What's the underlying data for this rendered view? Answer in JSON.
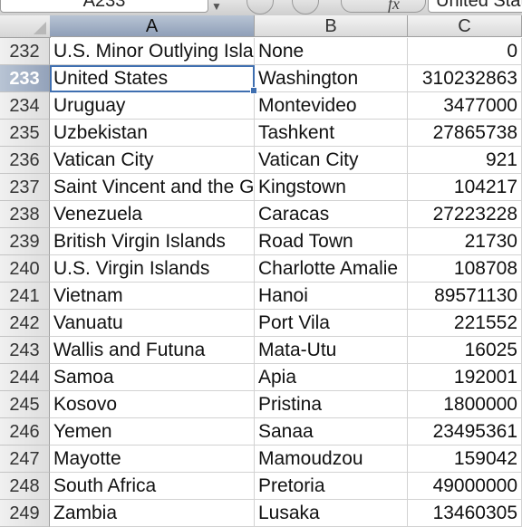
{
  "formula_bar": {
    "name_box": "A233",
    "content": "United States"
  },
  "columns": [
    "A",
    "B",
    "C"
  ],
  "selected_column": "A",
  "selected_row": "233",
  "rows": [
    {
      "num": "232",
      "a": "U.S. Minor Outlying Isla",
      "b": "None",
      "c": "0"
    },
    {
      "num": "233",
      "a": "United States",
      "b": "Washington",
      "c": "310232863"
    },
    {
      "num": "234",
      "a": "Uruguay",
      "b": "Montevideo",
      "c": "3477000"
    },
    {
      "num": "235",
      "a": "Uzbekistan",
      "b": "Tashkent",
      "c": "27865738"
    },
    {
      "num": "236",
      "a": "Vatican City",
      "b": "Vatican City",
      "c": "921"
    },
    {
      "num": "237",
      "a": "Saint Vincent and the G",
      "b": "Kingstown",
      "c": "104217"
    },
    {
      "num": "238",
      "a": "Venezuela",
      "b": "Caracas",
      "c": "27223228"
    },
    {
      "num": "239",
      "a": "British Virgin Islands",
      "b": "Road Town",
      "c": "21730"
    },
    {
      "num": "240",
      "a": "U.S. Virgin Islands",
      "b": "Charlotte Amalie",
      "c": "108708"
    },
    {
      "num": "241",
      "a": "Vietnam",
      "b": "Hanoi",
      "c": "89571130"
    },
    {
      "num": "242",
      "a": "Vanuatu",
      "b": "Port Vila",
      "c": "221552"
    },
    {
      "num": "243",
      "a": "Wallis and Futuna",
      "b": "Mata-Utu",
      "c": "16025"
    },
    {
      "num": "244",
      "a": "Samoa",
      "b": "Apia",
      "c": "192001"
    },
    {
      "num": "245",
      "a": "Kosovo",
      "b": "Pristina",
      "c": "1800000"
    },
    {
      "num": "246",
      "a": "Yemen",
      "b": "Sanaa",
      "c": "23495361"
    },
    {
      "num": "247",
      "a": "Mayotte",
      "b": "Mamoudzou",
      "c": "159042"
    },
    {
      "num": "248",
      "a": "South Africa",
      "b": "Pretoria",
      "c": "49000000"
    },
    {
      "num": "249",
      "a": "Zambia",
      "b": "Lusaka",
      "c": "13460305"
    }
  ]
}
